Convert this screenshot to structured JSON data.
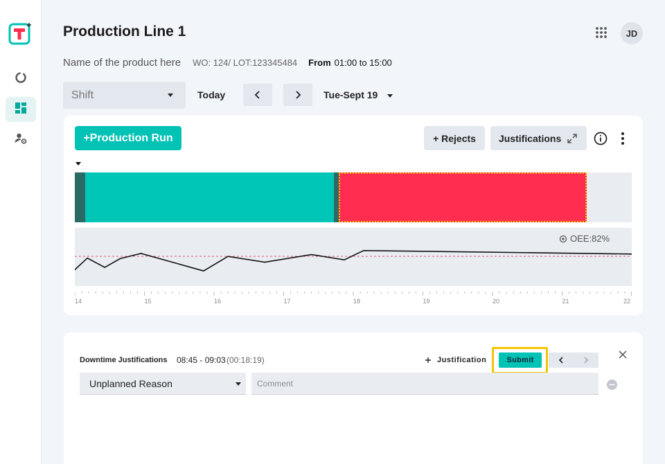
{
  "app": {
    "avatar_initials": "JD",
    "accent_color": "#00c2b5"
  },
  "header": {
    "title": "Production Line 1",
    "product_name": "Name of the product here",
    "wo_lot": "WO: 124/ LOT:123345484",
    "from_label": "From",
    "from_range": "01:00 to 15:00"
  },
  "toolbar": {
    "shift_placeholder": "Shift",
    "today_label": "Today",
    "prev_icon": "chevron-left-icon",
    "next_icon": "chevron-right-icon",
    "date_label": "Tue-Sept 19"
  },
  "sidebar": {
    "items": [
      {
        "icon": "progress-icon",
        "active": false
      },
      {
        "icon": "dashboard-icon",
        "active": true
      },
      {
        "icon": "user-settings-icon",
        "active": false
      }
    ]
  },
  "main_card": {
    "production_run_label": "+Production Run",
    "rejects_label": "+ Rejects",
    "justifications_label": "Justifications",
    "oee_label": "OEE:82%",
    "timeline": {
      "segments": [
        {
          "state": "idle",
          "color": "#2a6b66"
        },
        {
          "state": "running",
          "color": "#00c6b8"
        },
        {
          "state": "idle",
          "color": "#2a6b66"
        },
        {
          "state": "downtime",
          "color": "#ff2d4f",
          "selected": true
        }
      ]
    }
  },
  "chart_data": {
    "type": "line",
    "series": [
      {
        "x": [
          14,
          14.18,
          14.43,
          14.65,
          14.95,
          15.85,
          16.2,
          16.73,
          17.4,
          17.87,
          18.15,
          22
        ],
        "values": [
          0.28,
          0.48,
          0.32,
          0.47,
          0.56,
          0.26,
          0.51,
          0.41,
          0.54,
          0.45,
          0.61,
          0.55
        ]
      }
    ],
    "target_line": 0.51,
    "target_color": "#e8556f",
    "line_color": "#111111",
    "x_ticks": [
      "14",
      "15",
      "16",
      "17",
      "18",
      "19",
      "20",
      "21",
      "22"
    ],
    "xlim": [
      14,
      22
    ],
    "ylim": [
      0,
      1
    ],
    "grid": false
  },
  "downtime_panel": {
    "title": "Downtime Justifications",
    "time_range": "08:45 - 09:03",
    "duration": "(00:18:19)",
    "add_justification_label": "Justification",
    "submit_label": "Submit",
    "reason_value": "Unplanned Reason",
    "comment_placeholder": "Comment",
    "highlight_color": "#f5c400"
  }
}
